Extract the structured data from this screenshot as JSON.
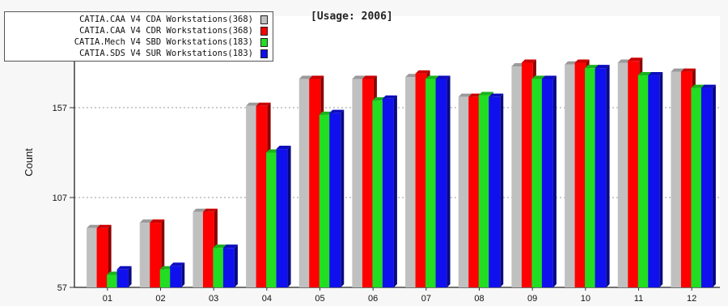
{
  "chart_data": {
    "type": "bar",
    "title": "[Usage: 2006]",
    "ylabel": "Count",
    "xlabel": "",
    "categories": [
      "01",
      "02",
      "03",
      "04",
      "05",
      "06",
      "07",
      "08",
      "09",
      "10",
      "11",
      "12"
    ],
    "yticks": [
      57,
      107,
      157
    ],
    "ylim": [
      57,
      207
    ],
    "grid": "horizontal dashed",
    "legend_position": "top-left",
    "series": [
      {
        "name": "CATIA.CAA V4 CDA Workstations(368)",
        "color": "#c0c0c0",
        "values": [
          90,
          93,
          99,
          158,
          173,
          173,
          174,
          163,
          180,
          181,
          182,
          177
        ]
      },
      {
        "name": "CATIA.CAA V4 CDR Workstations(368)",
        "color": "#ff0000",
        "values": [
          90,
          93,
          99,
          158,
          173,
          173,
          176,
          163,
          182,
          182,
          183,
          177
        ]
      },
      {
        "name": "CATIA.Mech V4 SBD Workstations(183)",
        "color": "#22dd22",
        "values": [
          64,
          67,
          79,
          132,
          153,
          161,
          173,
          164,
          173,
          179,
          175,
          168
        ]
      },
      {
        "name": "CATIA.SDS V4 SUR Workstations(183)",
        "color": "#1010ee",
        "values": [
          67,
          69,
          79,
          134,
          154,
          162,
          173,
          163,
          173,
          179,
          175,
          168
        ]
      }
    ]
  }
}
